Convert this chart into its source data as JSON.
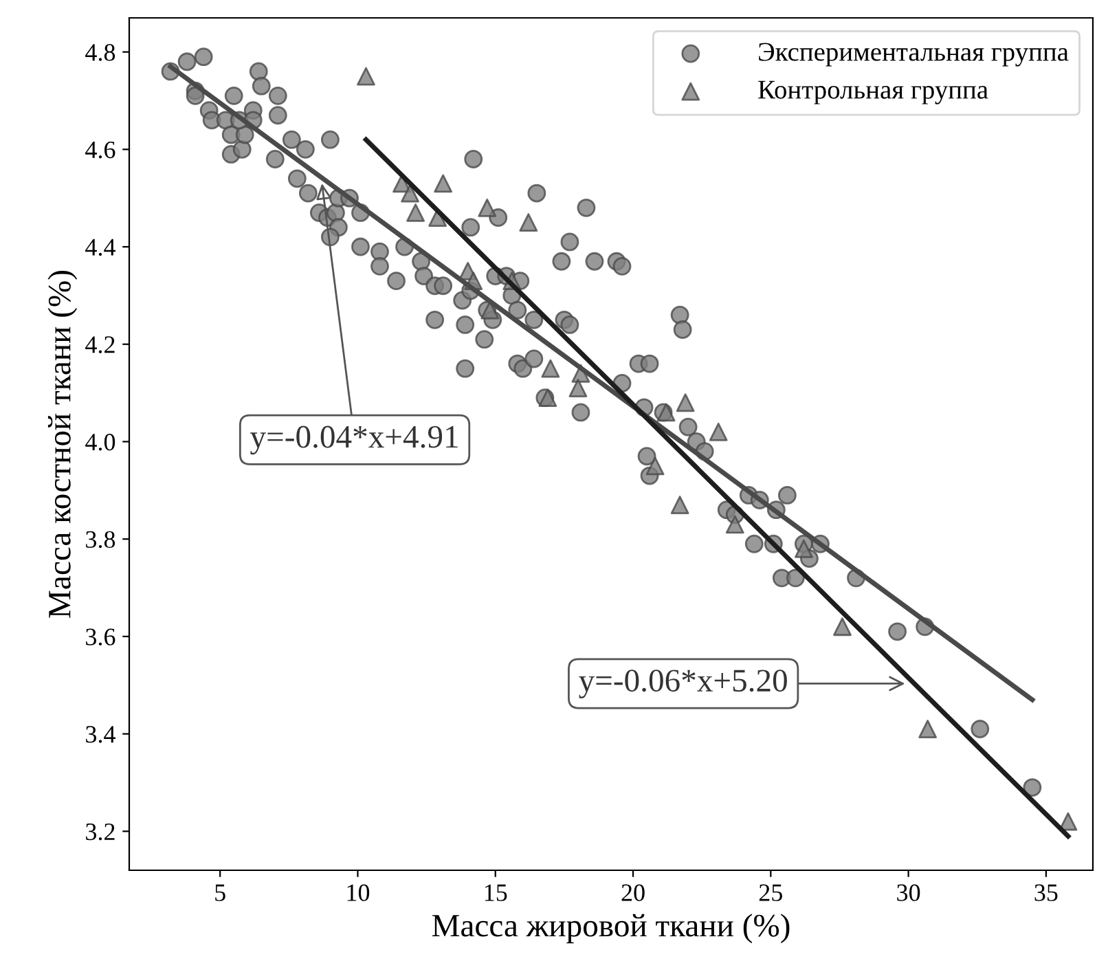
{
  "chart_data": {
    "type": "scatter",
    "xlabel": "Масса жировой ткани (%)",
    "ylabel": "Масса костной ткани (%)",
    "xlim": [
      1.7,
      36.7
    ],
    "ylim": [
      3.12,
      4.87
    ],
    "xticks": [
      5,
      10,
      15,
      20,
      25,
      30,
      35
    ],
    "yticks": [
      3.2,
      3.4,
      3.6,
      3.8,
      {
        "value": 4.0,
        "label": "4.0"
      },
      4.2,
      4.4,
      4.6,
      4.8
    ],
    "grid": false,
    "legend": "top right",
    "series": [
      {
        "name": "Экспериментальная группа",
        "marker": "circle",
        "color": "#808080",
        "x": [
          3.2,
          3.8,
          4.4,
          4.1,
          4.1,
          4.6,
          4.7,
          5.2,
          5.5,
          5.4,
          5.4,
          5.8,
          5.9,
          5.7,
          6.2,
          6.4,
          6.5,
          7.1,
          7.1,
          6.2,
          7.0,
          7.6,
          8.1,
          7.8,
          8.2,
          9.0,
          8.6,
          8.9,
          9.2,
          9.3,
          9.0,
          9.3,
          9.7,
          10.1,
          10.1,
          10.8,
          10.8,
          11.4,
          11.7,
          12.3,
          12.4,
          12.8,
          13.1,
          12.8,
          13.9,
          13.8,
          14.2,
          14.1,
          13.9,
          16.5,
          18.3,
          15.1,
          17.7,
          17.4,
          18.6,
          19.4,
          19.6,
          21.7,
          21.8,
          14.1,
          14.6,
          14.7,
          14.9,
          15.0,
          15.4,
          15.6,
          15.9,
          15.8,
          16.4,
          15.8,
          16.0,
          16.4,
          17.5,
          17.7,
          16.8,
          18.1,
          20.2,
          20.6,
          19.6,
          20.4,
          21.1,
          22.0,
          22.3,
          22.6,
          20.5,
          20.6,
          24.2,
          24.6,
          25.6,
          25.2,
          23.4,
          23.7,
          24.4,
          25.1,
          26.2,
          26.8,
          26.4,
          25.4,
          25.9,
          28.1,
          29.6,
          30.6,
          32.6,
          34.5
        ],
        "values": [
          4.76,
          4.78,
          4.79,
          4.72,
          4.71,
          4.68,
          4.66,
          4.66,
          4.71,
          4.63,
          4.59,
          4.6,
          4.63,
          4.66,
          4.68,
          4.76,
          4.73,
          4.71,
          4.67,
          4.66,
          4.58,
          4.62,
          4.6,
          4.54,
          4.51,
          4.62,
          4.47,
          4.46,
          4.47,
          4.44,
          4.42,
          4.5,
          4.5,
          4.47,
          4.4,
          4.39,
          4.36,
          4.33,
          4.4,
          4.37,
          4.34,
          4.32,
          4.32,
          4.25,
          4.24,
          4.29,
          4.58,
          4.44,
          4.15,
          4.51,
          4.48,
          4.46,
          4.41,
          4.37,
          4.37,
          4.37,
          4.36,
          4.26,
          4.23,
          4.31,
          4.21,
          4.27,
          4.25,
          4.34,
          4.34,
          4.3,
          4.33,
          4.27,
          4.25,
          4.16,
          4.15,
          4.17,
          4.25,
          4.24,
          4.09,
          4.06,
          4.16,
          4.16,
          4.12,
          4.07,
          4.06,
          4.03,
          4.0,
          3.98,
          3.97,
          3.93,
          3.89,
          3.88,
          3.89,
          3.86,
          3.86,
          3.85,
          3.79,
          3.79,
          3.79,
          3.79,
          3.76,
          3.72,
          3.72,
          3.72,
          3.61,
          3.62,
          3.41,
          3.29
        ]
      },
      {
        "name": "Контрольная группа",
        "marker": "triangle",
        "color": "#808080",
        "x": [
          10.3,
          11.6,
          11.9,
          13.1,
          12.1,
          12.9,
          14.0,
          14.7,
          16.2,
          14.2,
          15.6,
          14.8,
          17.0,
          18.1,
          16.9,
          18.0,
          21.2,
          21.9,
          23.1,
          20.8,
          21.7,
          23.7,
          26.2,
          27.6,
          30.7,
          35.8
        ],
        "values": [
          4.75,
          4.53,
          4.51,
          4.53,
          4.47,
          4.46,
          4.35,
          4.48,
          4.45,
          4.33,
          4.33,
          4.27,
          4.15,
          4.14,
          4.09,
          4.11,
          4.06,
          4.08,
          4.02,
          3.95,
          3.87,
          3.83,
          3.78,
          3.62,
          3.41,
          3.22
        ]
      },
      {
        "type": "line",
        "color": "#4a4a4a",
        "line_style": "solid",
        "x": [
          3.2,
          34.5
        ],
        "values": [
          4.77,
          3.47
        ]
      },
      {
        "type": "line",
        "color": "#1e1e1e",
        "line_style": "solid",
        "x": [
          10.3,
          35.8
        ],
        "values": [
          4.62,
          3.19
        ]
      }
    ],
    "annotations": [
      {
        "text": "y=-0.04*x+4.91",
        "x": 8.7,
        "y": 4.53
      },
      "y=-0.06*x+5.20"
    ]
  }
}
